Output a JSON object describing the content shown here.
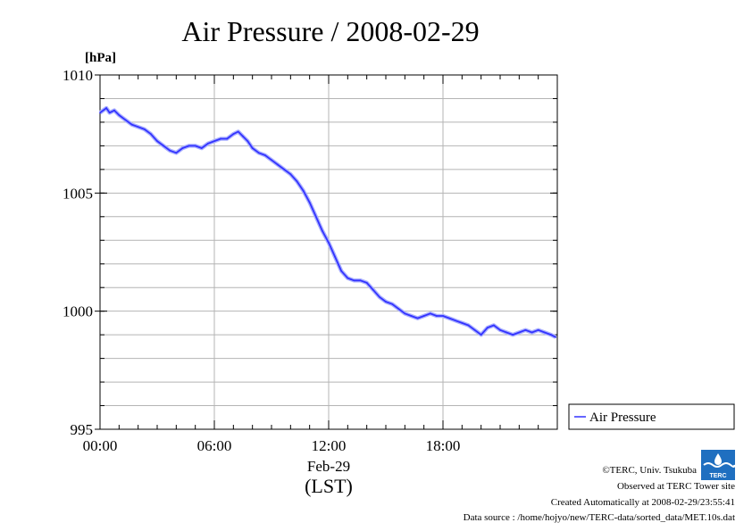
{
  "chart_data": {
    "type": "line",
    "title": "Air Pressure / 2008-02-29",
    "ylabel": "[hPa]",
    "ylim": [
      995,
      1010
    ],
    "yticks": [
      {
        "value": 1010,
        "label": "1010"
      },
      {
        "value": 1005,
        "label": "1005"
      },
      {
        "value": 1000,
        "label": "1000"
      },
      {
        "value": 995,
        "label": "995"
      }
    ],
    "y_minor_step": 1,
    "xlim": [
      "00:00",
      "24:00"
    ],
    "xticks": [
      {
        "value": "00:00",
        "label": "00:00"
      },
      {
        "value": "06:00",
        "label": "06:00"
      },
      {
        "value": "12:00",
        "label": "12:00"
      },
      {
        "value": "18:00",
        "label": "18:00"
      }
    ],
    "xlabel_date": "Feb-29",
    "xlabel": "(LST)",
    "grid": true,
    "legend_position": "right",
    "series": [
      {
        "name": "Air Pressure",
        "color": "#3333ff",
        "x": [
          "00:00",
          "00:20",
          "00:30",
          "00:45",
          "01:00",
          "01:20",
          "01:40",
          "02:00",
          "02:20",
          "02:40",
          "03:00",
          "03:20",
          "03:40",
          "04:00",
          "04:20",
          "04:40",
          "05:00",
          "05:20",
          "05:40",
          "06:00",
          "06:20",
          "06:40",
          "07:00",
          "07:15",
          "07:30",
          "07:45",
          "08:00",
          "08:20",
          "08:40",
          "09:00",
          "09:20",
          "09:40",
          "10:00",
          "10:20",
          "10:40",
          "11:00",
          "11:20",
          "11:40",
          "12:00",
          "12:20",
          "12:40",
          "13:00",
          "13:20",
          "13:40",
          "14:00",
          "14:20",
          "14:40",
          "15:00",
          "15:20",
          "15:40",
          "16:00",
          "16:20",
          "16:40",
          "17:00",
          "17:20",
          "17:40",
          "18:00",
          "18:20",
          "18:40",
          "19:00",
          "19:20",
          "19:40",
          "20:00",
          "20:20",
          "20:40",
          "21:00",
          "21:20",
          "21:40",
          "22:00",
          "22:20",
          "22:40",
          "23:00",
          "23:20",
          "23:40",
          "23:55"
        ],
        "y": [
          1008.4,
          1008.6,
          1008.4,
          1008.5,
          1008.3,
          1008.1,
          1007.9,
          1007.8,
          1007.7,
          1007.5,
          1007.2,
          1007.0,
          1006.8,
          1006.7,
          1006.9,
          1007.0,
          1007.0,
          1006.9,
          1007.1,
          1007.2,
          1007.3,
          1007.3,
          1007.5,
          1007.6,
          1007.4,
          1007.2,
          1006.9,
          1006.7,
          1006.6,
          1006.4,
          1006.2,
          1006.0,
          1005.8,
          1005.5,
          1005.1,
          1004.6,
          1004.0,
          1003.4,
          1002.9,
          1002.3,
          1001.7,
          1001.4,
          1001.3,
          1001.3,
          1001.2,
          1000.9,
          1000.6,
          1000.4,
          1000.3,
          1000.1,
          999.9,
          999.8,
          999.7,
          999.8,
          999.9,
          999.8,
          999.8,
          999.7,
          999.6,
          999.5,
          999.4,
          999.2,
          999.0,
          999.3,
          999.4,
          999.2,
          999.1,
          999.0,
          999.1,
          999.2,
          999.1,
          999.2,
          999.1,
          999.0,
          998.9
        ]
      }
    ]
  },
  "credits": {
    "copyright": "©TERC, Univ. Tsukuba",
    "observed": "Observed at TERC Tower site",
    "created": "Created Automatically at 2008-02-29/23:55:41",
    "source": "Data source : /home/hojyo/new/TERC-data/sorted_data/MET.10s.dat",
    "logo_text": "TERC"
  }
}
